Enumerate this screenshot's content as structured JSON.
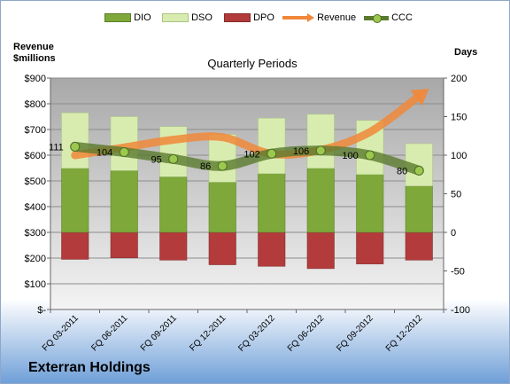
{
  "chart_data": {
    "type": "bar",
    "title": "Quarterly Periods",
    "company": "Exterran Holdings",
    "left_axis_label": [
      "Revenue",
      "$millions"
    ],
    "right_axis_label": "Days",
    "categories": [
      "FQ 03-2011",
      "FQ 06-2011",
      "FQ 09-2011",
      "FQ 12-2011",
      "FQ 03-2012",
      "FQ 06-2012",
      "FQ 09-2012",
      "FQ 12-2012"
    ],
    "left_ticks": [
      "$-",
      "$100",
      "$200",
      "$300",
      "$400",
      "$500",
      "$600",
      "$700",
      "$800",
      "$900"
    ],
    "left_ylim": [
      0,
      900
    ],
    "right_ticks": [
      "-100",
      "-50",
      "0",
      "50",
      "100",
      "150",
      "200"
    ],
    "right_ylim": [
      -100,
      200
    ],
    "series": [
      {
        "name": "DIO",
        "axis": "right",
        "color": "#7ea83a",
        "values": [
          83,
          80,
          72,
          65,
          76,
          83,
          75,
          60
        ]
      },
      {
        "name": "DSO",
        "axis": "right",
        "color": "#d9ecb0",
        "values": [
          72,
          70,
          65,
          62,
          72,
          70,
          70,
          55
        ]
      },
      {
        "name": "DPO",
        "axis": "right",
        "color": "#b33b3b",
        "values": [
          -35,
          -33,
          -36,
          -42,
          -44,
          -47,
          -41,
          -36
        ]
      },
      {
        "name": "Revenue",
        "axis": "left",
        "color": "#f0883a",
        "values": [
          600,
          630,
          660,
          670,
          605,
          620,
          690,
          830
        ]
      },
      {
        "name": "CCC",
        "axis": "right",
        "color": "#5a7a2e",
        "values": [
          111,
          104,
          95,
          86,
          102,
          106,
          100,
          80
        ]
      }
    ],
    "ccc_labels": [
      "111",
      "104",
      "95",
      "86",
      "102",
      "106",
      "100",
      "80"
    ],
    "legend": [
      "DIO",
      "DSO",
      "DPO",
      "Revenue",
      "CCC"
    ]
  }
}
